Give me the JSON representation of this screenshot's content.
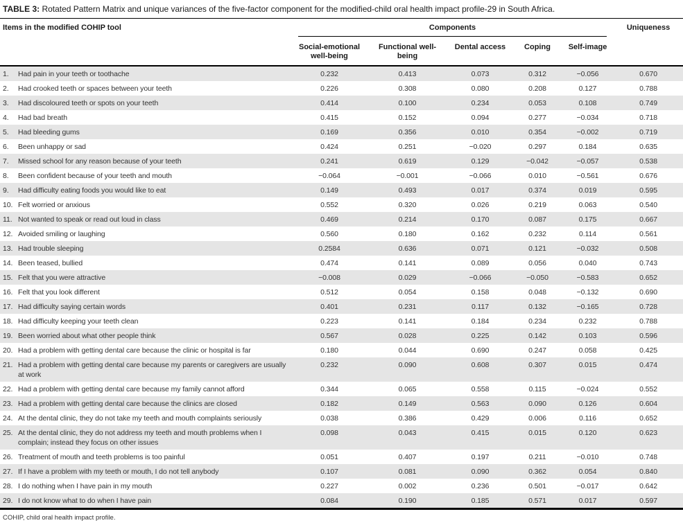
{
  "title": {
    "label": "TABLE 3:",
    "text": " Rotated Pattern Matrix and unique variances of the five-factor component for the modified-child oral health impact profile-29 in South Africa."
  },
  "table": {
    "items_header": "Items in the modified COHIP tool",
    "components_header": "Components",
    "uniqueness_header": "Uniqueness",
    "component_columns": [
      "Social-emotional well-being",
      "Functional well-being",
      "Dental access",
      "Coping",
      "Self-image"
    ],
    "rows": [
      {
        "num": "1.",
        "item": "Had pain in your teeth or toothache",
        "values": [
          "0.232",
          "0.413",
          "0.073",
          "0.312",
          "−0.056",
          "0.670"
        ]
      },
      {
        "num": "2.",
        "item": "Had crooked teeth or spaces between your teeth",
        "values": [
          "0.226",
          "0.308",
          "0.080",
          "0.208",
          "0.127",
          "0.788"
        ]
      },
      {
        "num": "3.",
        "item": "Had discoloured teeth or spots on your teeth",
        "values": [
          "0.414",
          "0.100",
          "0.234",
          "0.053",
          "0.108",
          "0.749"
        ]
      },
      {
        "num": "4.",
        "item": "Had bad breath",
        "values": [
          "0.415",
          "0.152",
          "0.094",
          "0.277",
          "−0.034",
          "0.718"
        ]
      },
      {
        "num": "5.",
        "item": "Had bleeding gums",
        "values": [
          "0.169",
          "0.356",
          "0.010",
          "0.354",
          "−0.002",
          "0.719"
        ]
      },
      {
        "num": "6.",
        "item": "Been unhappy or sad",
        "values": [
          "0.424",
          "0.251",
          "−0.020",
          "0.297",
          "0.184",
          "0.635"
        ]
      },
      {
        "num": "7.",
        "item": "Missed school for any reason because of your teeth",
        "values": [
          "0.241",
          "0.619",
          "0.129",
          "−0.042",
          "−0.057",
          "0.538"
        ]
      },
      {
        "num": "8.",
        "item": "Been confident because of your teeth and mouth",
        "values": [
          "−0.064",
          "−0.001",
          "−0.066",
          "0.010",
          "−0.561",
          "0.676"
        ]
      },
      {
        "num": "9.",
        "item": "Had difficulty eating foods you would like to eat",
        "values": [
          "0.149",
          "0.493",
          "0.017",
          "0.374",
          "0.019",
          "0.595"
        ]
      },
      {
        "num": "10.",
        "item": "Felt worried or anxious",
        "values": [
          "0.552",
          "0.320",
          "0.026",
          "0.219",
          "0.063",
          "0.540"
        ]
      },
      {
        "num": "11.",
        "item": "Not wanted to speak or read out loud in class",
        "values": [
          "0.469",
          "0.214",
          "0.170",
          "0.087",
          "0.175",
          "0.667"
        ]
      },
      {
        "num": "12.",
        "item": "Avoided smiling or laughing",
        "values": [
          "0.560",
          "0.180",
          "0.162",
          "0.232",
          "0.114",
          "0.561"
        ]
      },
      {
        "num": "13.",
        "item": "Had trouble sleeping",
        "values": [
          "0.2584",
          "0.636",
          "0.071",
          "0.121",
          "−0.032",
          "0.508"
        ]
      },
      {
        "num": "14.",
        "item": "Been teased, bullied",
        "values": [
          "0.474",
          "0.141",
          "0.089",
          "0.056",
          "0.040",
          "0.743"
        ]
      },
      {
        "num": "15.",
        "item": "Felt that you were attractive",
        "values": [
          "−0.008",
          "0.029",
          "−0.066",
          "−0.050",
          "−0.583",
          "0.652"
        ]
      },
      {
        "num": "16.",
        "item": "Felt that you look different",
        "values": [
          "0.512",
          "0.054",
          "0.158",
          "0.048",
          "−0.132",
          "0.690"
        ]
      },
      {
        "num": "17.",
        "item": "Had difficulty saying certain words",
        "values": [
          "0.401",
          "0.231",
          "0.117",
          "0.132",
          "−0.165",
          "0.728"
        ]
      },
      {
        "num": "18.",
        "item": "Had difficulty keeping your teeth clean",
        "values": [
          "0.223",
          "0.141",
          "0.184",
          "0.234",
          "0.232",
          "0.788"
        ]
      },
      {
        "num": "19.",
        "item": "Been worried about what other people think",
        "values": [
          "0.567",
          "0.028",
          "0.225",
          "0.142",
          "0.103",
          "0.596"
        ]
      },
      {
        "num": "20.",
        "item": "Had a problem with getting dental care because the clinic or hospital is far",
        "values": [
          "0.180",
          "0.044",
          "0.690",
          "0.247",
          "0.058",
          "0.425"
        ]
      },
      {
        "num": "21.",
        "item": "Had a problem with getting dental care because my parents or caregivers are usually at work",
        "values": [
          "0.232",
          "0.090",
          "0.608",
          "0.307",
          "0.015",
          "0.474"
        ]
      },
      {
        "num": "22.",
        "item": "Had a problem with getting dental care because my family cannot afford",
        "values": [
          "0.344",
          "0.065",
          "0.558",
          "0.115",
          "−0.024",
          "0.552"
        ]
      },
      {
        "num": "23.",
        "item": "Had a problem with getting dental care because the clinics are closed",
        "values": [
          "0.182",
          "0.149",
          "0.563",
          "0.090",
          "0.126",
          "0.604"
        ]
      },
      {
        "num": "24.",
        "item": "At the dental clinic, they do not take my teeth and mouth complaints seriously",
        "values": [
          "0.038",
          "0.386",
          "0.429",
          "0.006",
          "0.116",
          "0.652"
        ]
      },
      {
        "num": "25.",
        "item": "At the dental clinic, they do not address my teeth and mouth problems when I complain; instead they focus on other issues",
        "values": [
          "0.098",
          "0.043",
          "0.415",
          "0.015",
          "0.120",
          "0.623"
        ]
      },
      {
        "num": "26.",
        "item": "Treatment of mouth and teeth problems is too painful",
        "values": [
          "0.051",
          "0.407",
          "0.197",
          "0.211",
          "−0.010",
          "0.748"
        ]
      },
      {
        "num": "27.",
        "item": "If I have a problem with my teeth or mouth, I do not tell anybody",
        "values": [
          "0.107",
          "0.081",
          "0.090",
          "0.362",
          "0.054",
          "0.840"
        ]
      },
      {
        "num": "28.",
        "item": "I do nothing when I have pain in my mouth",
        "values": [
          "0.227",
          "0.002",
          "0.236",
          "0.501",
          "−0.017",
          "0.642"
        ]
      },
      {
        "num": "29.",
        "item": "I do not know what to do when I have pain",
        "values": [
          "0.084",
          "0.190",
          "0.185",
          "0.571",
          "0.017",
          "0.597"
        ]
      }
    ]
  },
  "footnote": "COHIP, child oral health impact profile.",
  "colors": {
    "row_shade": "#e5e5e5",
    "border": "#000000",
    "text": "#333333"
  }
}
